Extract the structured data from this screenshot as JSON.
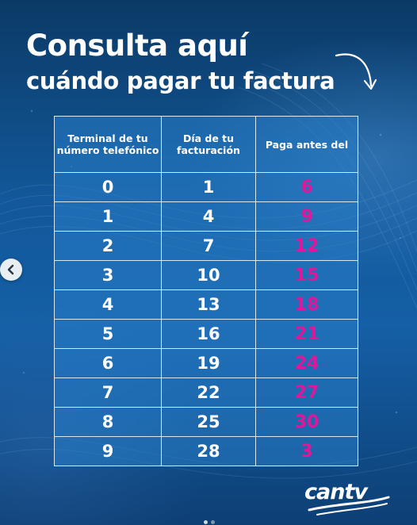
{
  "header": {
    "title_line1": "Consulta aquí",
    "title_line2": "cuándo pagar tu factura"
  },
  "table": {
    "headers": [
      "Terminal de tu número telefónico",
      "Día de tu facturación",
      "Paga antes del"
    ],
    "rows": [
      {
        "terminal": "0",
        "billing_day": "1",
        "pay_before": "6"
      },
      {
        "terminal": "1",
        "billing_day": "4",
        "pay_before": "9"
      },
      {
        "terminal": "2",
        "billing_day": "7",
        "pay_before": "12"
      },
      {
        "terminal": "3",
        "billing_day": "10",
        "pay_before": "15"
      },
      {
        "terminal": "4",
        "billing_day": "13",
        "pay_before": "18"
      },
      {
        "terminal": "5",
        "billing_day": "16",
        "pay_before": "21"
      },
      {
        "terminal": "6",
        "billing_day": "19",
        "pay_before": "24"
      },
      {
        "terminal": "7",
        "billing_day": "22",
        "pay_before": "27"
      },
      {
        "terminal": "8",
        "billing_day": "25",
        "pay_before": "30"
      },
      {
        "terminal": "9",
        "billing_day": "28",
        "pay_before": "3"
      }
    ]
  },
  "brand": {
    "logo_text": "cantv"
  },
  "colors": {
    "accent_pink": "#e0169b",
    "background": "#12589a",
    "text": "#ffffff"
  },
  "icons": {
    "carousel_prev": "chevron-left-icon",
    "decor_arrow": "curved-arrow-icon"
  }
}
